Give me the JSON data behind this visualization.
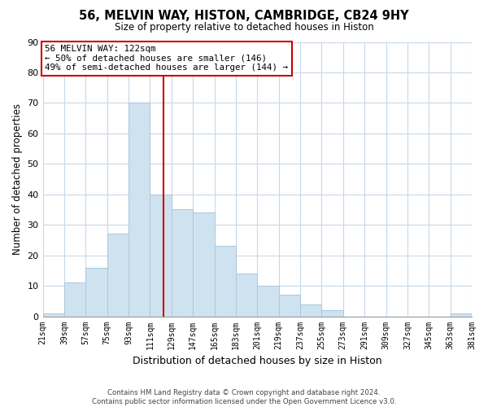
{
  "title": "56, MELVIN WAY, HISTON, CAMBRIDGE, CB24 9HY",
  "subtitle": "Size of property relative to detached houses in Histon",
  "xlabel": "Distribution of detached houses by size in Histon",
  "ylabel": "Number of detached properties",
  "bin_edges": [
    21,
    39,
    57,
    75,
    93,
    111,
    129,
    147,
    165,
    183,
    201,
    219,
    237,
    255,
    273,
    291,
    309,
    327,
    345,
    363,
    381
  ],
  "counts": [
    1,
    11,
    16,
    27,
    70,
    40,
    35,
    34,
    23,
    14,
    10,
    7,
    4,
    2,
    0,
    0,
    0,
    0,
    0,
    1
  ],
  "bar_color": "#cfe2f0",
  "bar_edgecolor": "#a8c8e0",
  "vline_x": 122,
  "vline_color": "#cc0000",
  "annotation_line1": "56 MELVIN WAY: 122sqm",
  "annotation_line2": "← 50% of detached houses are smaller (146)",
  "annotation_line3": "49% of semi-detached houses are larger (144) →",
  "annotation_box_facecolor": "#ffffff",
  "annotation_box_edgecolor": "#cc0000",
  "tick_labels": [
    "21sqm",
    "39sqm",
    "57sqm",
    "75sqm",
    "93sqm",
    "111sqm",
    "129sqm",
    "147sqm",
    "165sqm",
    "183sqm",
    "201sqm",
    "219sqm",
    "237sqm",
    "255sqm",
    "273sqm",
    "291sqm",
    "309sqm",
    "327sqm",
    "345sqm",
    "363sqm",
    "381sqm"
  ],
  "ylim": [
    0,
    90
  ],
  "yticks": [
    0,
    10,
    20,
    30,
    40,
    50,
    60,
    70,
    80,
    90
  ],
  "footer_text": "Contains HM Land Registry data © Crown copyright and database right 2024.\nContains public sector information licensed under the Open Government Licence v3.0.",
  "background_color": "#ffffff",
  "grid_color": "#c8d8e8"
}
